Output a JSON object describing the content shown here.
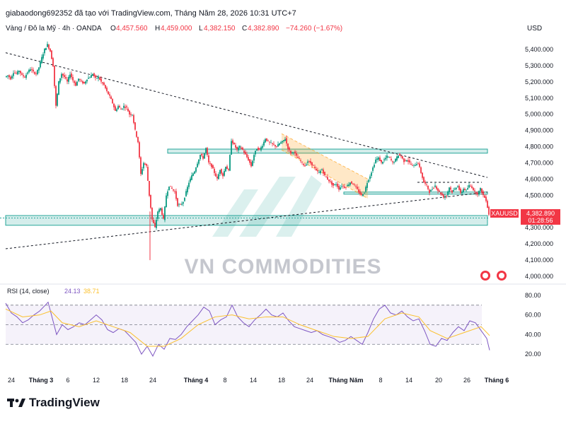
{
  "header": {
    "attribution": "giabaodong692352 đã tạo với TradingView.com, Tháng Năm 28, 2026 10:31 UTC+7"
  },
  "legend": {
    "symbol": "Vàng / Đô la Mỹ · 4h · OANDA",
    "o_label": "O",
    "o_value": "4,457.560",
    "h_label": "H",
    "h_value": "4,459.000",
    "l_label": "L",
    "l_value": "4,382.150",
    "c_label": "C",
    "c_value": "4,382.890",
    "change": "−74.260 (−1.67%)"
  },
  "price_axis": {
    "currency": "USD",
    "ticks": [
      "5,400.000",
      "5,300.000",
      "5,200.000",
      "5,100.000",
      "5,000.000",
      "4,900.000",
      "4,800.000",
      "4,700.000",
      "4,600.000",
      "4,500.000",
      "4,400.000",
      "4,300.000",
      "4,200.000",
      "4,100.000",
      "4,000.000"
    ]
  },
  "last_price": {
    "symbol": "XAUUSD",
    "price": "4,382.890",
    "countdown": "01:28:56",
    "color": "#f23645"
  },
  "rsi": {
    "label": "RSI (14, close)",
    "value": "24.13",
    "ma_value": "38.71",
    "ticks": [
      "80.00",
      "60.00",
      "40.00",
      "20.00"
    ],
    "upper": 70,
    "lower": 30
  },
  "time_axis": {
    "labels": [
      "24",
      "Tháng 3",
      "6",
      "12",
      "18",
      "24",
      "Tháng 4",
      "8",
      "14",
      "18",
      "24",
      "Tháng Năm",
      "8",
      "14",
      "20",
      "26",
      "Tháng 6"
    ]
  },
  "watermark": {
    "text": "VN COMMODITIES"
  },
  "footer": {
    "logo_text": "TradingView"
  },
  "colors": {
    "up": "#089981",
    "down": "#f23645",
    "zone": "#26a69a",
    "channel": "#ff9800",
    "rsi_line": "#7e57c2",
    "rsi_ma": "#fbc02d"
  },
  "chart_data": {
    "type": "candlestick",
    "price_range": [
      3950,
      5480
    ],
    "rsi_range": [
      10,
      85
    ],
    "price_path": [
      [
        0,
        5230
      ],
      [
        4,
        5240
      ],
      [
        8,
        5220
      ],
      [
        12,
        5260
      ],
      [
        16,
        5250
      ],
      [
        20,
        5270
      ],
      [
        24,
        5240
      ],
      [
        28,
        5230
      ],
      [
        32,
        5260
      ],
      [
        36,
        5280
      ],
      [
        40,
        5260
      ],
      [
        44,
        5250
      ],
      [
        48,
        5290
      ],
      [
        52,
        5350
      ],
      [
        56,
        5400
      ],
      [
        60,
        5430
      ],
      [
        64,
        5390
      ],
      [
        68,
        5300
      ],
      [
        72,
        5050
      ],
      [
        76,
        5200
      ],
      [
        80,
        5250
      ],
      [
        84,
        5230
      ],
      [
        88,
        5200
      ],
      [
        92,
        5250
      ],
      [
        96,
        5210
      ],
      [
        100,
        5180
      ],
      [
        104,
        5220
      ],
      [
        108,
        5200
      ],
      [
        112,
        5190
      ],
      [
        116,
        5220
      ],
      [
        120,
        5230
      ],
      [
        124,
        5250
      ],
      [
        128,
        5220
      ],
      [
        132,
        5230
      ],
      [
        136,
        5200
      ],
      [
        140,
        5180
      ],
      [
        144,
        5140
      ],
      [
        148,
        5110
      ],
      [
        152,
        5070
      ],
      [
        156,
        5020
      ],
      [
        160,
        5050
      ],
      [
        164,
        5030
      ],
      [
        168,
        5050
      ],
      [
        172,
        5040
      ],
      [
        176,
        5000
      ],
      [
        180,
        5000
      ],
      [
        184,
        4900
      ],
      [
        188,
        4830
      ],
      [
        192,
        4630
      ],
      [
        196,
        4700
      ],
      [
        200,
        4680
      ],
      [
        204,
        4500
      ],
      [
        208,
        4350
      ],
      [
        212,
        4300
      ],
      [
        216,
        4400
      ],
      [
        220,
        4420
      ],
      [
        224,
        4350
      ],
      [
        228,
        4500
      ],
      [
        232,
        4560
      ],
      [
        236,
        4540
      ],
      [
        240,
        4520
      ],
      [
        244,
        4440
      ],
      [
        248,
        4440
      ],
      [
        252,
        4460
      ],
      [
        256,
        4520
      ],
      [
        260,
        4580
      ],
      [
        264,
        4620
      ],
      [
        268,
        4650
      ],
      [
        272,
        4700
      ],
      [
        276,
        4750
      ],
      [
        280,
        4730
      ],
      [
        284,
        4790
      ],
      [
        288,
        4700
      ],
      [
        292,
        4680
      ],
      [
        296,
        4640
      ],
      [
        300,
        4600
      ],
      [
        304,
        4660
      ],
      [
        308,
        4620
      ],
      [
        312,
        4680
      ],
      [
        316,
        4650
      ],
      [
        320,
        4840
      ],
      [
        324,
        4810
      ],
      [
        328,
        4780
      ],
      [
        332,
        4800
      ],
      [
        336,
        4780
      ],
      [
        340,
        4750
      ],
      [
        344,
        4720
      ],
      [
        348,
        4680
      ],
      [
        352,
        4750
      ],
      [
        356,
        4790
      ],
      [
        360,
        4780
      ],
      [
        364,
        4810
      ],
      [
        368,
        4850
      ],
      [
        372,
        4830
      ],
      [
        376,
        4820
      ],
      [
        380,
        4810
      ],
      [
        384,
        4800
      ],
      [
        388,
        4820
      ],
      [
        392,
        4830
      ],
      [
        396,
        4850
      ],
      [
        400,
        4790
      ],
      [
        404,
        4760
      ],
      [
        408,
        4770
      ],
      [
        412,
        4740
      ],
      [
        416,
        4720
      ],
      [
        420,
        4700
      ],
      [
        424,
        4680
      ],
      [
        428,
        4710
      ],
      [
        432,
        4700
      ],
      [
        436,
        4680
      ],
      [
        440,
        4650
      ],
      [
        444,
        4640
      ],
      [
        448,
        4660
      ],
      [
        452,
        4620
      ],
      [
        456,
        4600
      ],
      [
        460,
        4580
      ],
      [
        464,
        4560
      ],
      [
        468,
        4570
      ],
      [
        472,
        4540
      ],
      [
        476,
        4560
      ],
      [
        480,
        4550
      ],
      [
        484,
        4560
      ],
      [
        488,
        4580
      ],
      [
        492,
        4570
      ],
      [
        496,
        4550
      ],
      [
        500,
        4520
      ],
      [
        504,
        4500
      ],
      [
        508,
        4520
      ],
      [
        512,
        4580
      ],
      [
        516,
        4620
      ],
      [
        520,
        4670
      ],
      [
        524,
        4720
      ],
      [
        528,
        4730
      ],
      [
        532,
        4700
      ],
      [
        536,
        4720
      ],
      [
        540,
        4740
      ],
      [
        544,
        4730
      ],
      [
        548,
        4700
      ],
      [
        552,
        4720
      ],
      [
        556,
        4750
      ],
      [
        560,
        4740
      ],
      [
        564,
        4710
      ],
      [
        568,
        4720
      ],
      [
        572,
        4700
      ],
      [
        576,
        4680
      ],
      [
        580,
        4690
      ],
      [
        584,
        4700
      ],
      [
        588,
        4640
      ],
      [
        592,
        4580
      ],
      [
        596,
        4560
      ],
      [
        600,
        4520
      ],
      [
        604,
        4540
      ],
      [
        608,
        4560
      ],
      [
        612,
        4530
      ],
      [
        616,
        4510
      ],
      [
        620,
        4490
      ],
      [
        624,
        4500
      ],
      [
        628,
        4550
      ],
      [
        632,
        4520
      ],
      [
        636,
        4540
      ],
      [
        640,
        4560
      ],
      [
        644,
        4510
      ],
      [
        648,
        4540
      ],
      [
        652,
        4530
      ],
      [
        656,
        4560
      ],
      [
        660,
        4550
      ],
      [
        664,
        4520
      ],
      [
        668,
        4510
      ],
      [
        672,
        4540
      ],
      [
        676,
        4500
      ],
      [
        680,
        4470
      ],
      [
        684,
        4383
      ]
    ],
    "rsi_path": [
      [
        0,
        72
      ],
      [
        8,
        62
      ],
      [
        16,
        58
      ],
      [
        24,
        52
      ],
      [
        32,
        55
      ],
      [
        40,
        60
      ],
      [
        48,
        64
      ],
      [
        56,
        70
      ],
      [
        60,
        73
      ],
      [
        64,
        62
      ],
      [
        72,
        40
      ],
      [
        80,
        50
      ],
      [
        88,
        45
      ],
      [
        96,
        48
      ],
      [
        104,
        52
      ],
      [
        112,
        50
      ],
      [
        120,
        55
      ],
      [
        128,
        60
      ],
      [
        136,
        55
      ],
      [
        144,
        45
      ],
      [
        152,
        42
      ],
      [
        160,
        46
      ],
      [
        168,
        44
      ],
      [
        176,
        38
      ],
      [
        184,
        32
      ],
      [
        192,
        20
      ],
      [
        200,
        28
      ],
      [
        208,
        18
      ],
      [
        216,
        30
      ],
      [
        224,
        25
      ],
      [
        232,
        36
      ],
      [
        240,
        35
      ],
      [
        248,
        40
      ],
      [
        256,
        48
      ],
      [
        264,
        54
      ],
      [
        272,
        60
      ],
      [
        280,
        68
      ],
      [
        288,
        64
      ],
      [
        296,
        50
      ],
      [
        304,
        55
      ],
      [
        312,
        58
      ],
      [
        320,
        70
      ],
      [
        328,
        58
      ],
      [
        336,
        52
      ],
      [
        344,
        48
      ],
      [
        352,
        55
      ],
      [
        360,
        60
      ],
      [
        368,
        66
      ],
      [
        376,
        60
      ],
      [
        384,
        58
      ],
      [
        392,
        62
      ],
      [
        400,
        54
      ],
      [
        408,
        48
      ],
      [
        416,
        46
      ],
      [
        424,
        44
      ],
      [
        432,
        42
      ],
      [
        440,
        44
      ],
      [
        448,
        40
      ],
      [
        456,
        38
      ],
      [
        464,
        36
      ],
      [
        472,
        32
      ],
      [
        480,
        34
      ],
      [
        488,
        38
      ],
      [
        496,
        34
      ],
      [
        504,
        30
      ],
      [
        512,
        42
      ],
      [
        520,
        56
      ],
      [
        528,
        66
      ],
      [
        536,
        70
      ],
      [
        544,
        62
      ],
      [
        552,
        60
      ],
      [
        560,
        64
      ],
      [
        568,
        58
      ],
      [
        576,
        54
      ],
      [
        584,
        56
      ],
      [
        592,
        44
      ],
      [
        600,
        30
      ],
      [
        608,
        28
      ],
      [
        616,
        36
      ],
      [
        624,
        34
      ],
      [
        632,
        42
      ],
      [
        640,
        48
      ],
      [
        648,
        44
      ],
      [
        656,
        54
      ],
      [
        664,
        52
      ],
      [
        672,
        44
      ],
      [
        680,
        36
      ],
      [
        684,
        24
      ]
    ],
    "rsi_ma_path": [
      [
        0,
        66
      ],
      [
        24,
        58
      ],
      [
        48,
        60
      ],
      [
        64,
        64
      ],
      [
        80,
        52
      ],
      [
        104,
        48
      ],
      [
        128,
        54
      ],
      [
        152,
        48
      ],
      [
        176,
        42
      ],
      [
        200,
        28
      ],
      [
        224,
        28
      ],
      [
        248,
        36
      ],
      [
        272,
        50
      ],
      [
        296,
        58
      ],
      [
        320,
        60
      ],
      [
        344,
        56
      ],
      [
        368,
        58
      ],
      [
        392,
        58
      ],
      [
        416,
        50
      ],
      [
        440,
        44
      ],
      [
        464,
        38
      ],
      [
        488,
        36
      ],
      [
        512,
        38
      ],
      [
        536,
        56
      ],
      [
        560,
        62
      ],
      [
        584,
        58
      ],
      [
        600,
        44
      ],
      [
        624,
        36
      ],
      [
        648,
        42
      ],
      [
        672,
        48
      ],
      [
        684,
        39
      ]
    ],
    "zones": [
      {
        "x1": 229,
        "x2": 681,
        "p1": 4785,
        "p2": 4760
      },
      {
        "x1": 478,
        "x2": 681,
        "p1": 4520,
        "p2": 4508
      },
      {
        "x1": 0,
        "x2": 681,
        "p1": 4375,
        "p2": 4315
      }
    ],
    "trendlines": [
      {
        "p1": [
          0,
          5380
        ],
        "p2": [
          681,
          4610
        ],
        "style": "dashed"
      },
      {
        "p1": [
          0,
          4170
        ],
        "p2": [
          681,
          4520
        ],
        "style": "dashed"
      }
    ],
    "channel": {
      "top": [
        [
          390,
          4880
        ],
        [
          512,
          4600
        ]
      ],
      "bottom": [
        [
          390,
          4780
        ],
        [
          512,
          4480
        ]
      ]
    }
  }
}
